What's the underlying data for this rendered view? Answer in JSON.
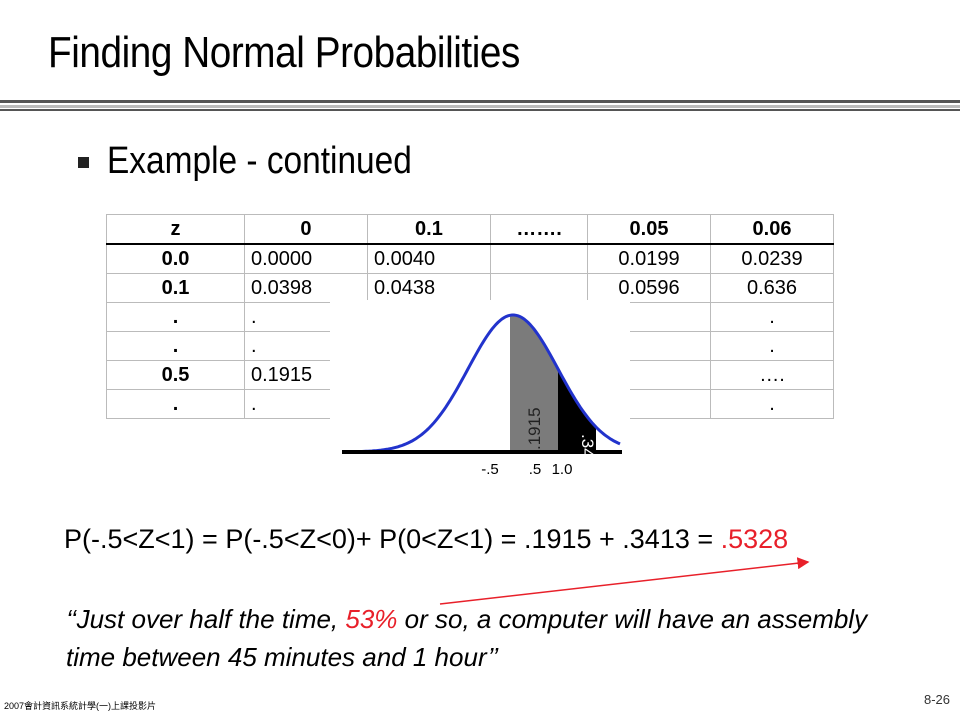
{
  "title": "Finding Normal Probabilities",
  "bullet": "Example - continued",
  "table": {
    "header": [
      "z",
      "0",
      "0.1",
      "…….",
      "0.05",
      "0.06"
    ],
    "rows": [
      [
        "0.0",
        "0.0000",
        "0.0040",
        "",
        "0.0199",
        "0.0239"
      ],
      [
        "0.1",
        "0.0398",
        "0.0438",
        "",
        "0.0596",
        "0.636"
      ],
      [
        ".",
        ".",
        "",
        "",
        "",
        "."
      ],
      [
        ".",
        ".",
        "",
        "",
        "",
        "."
      ],
      [
        "0.5",
        "0.1915",
        "",
        "",
        "",
        "…."
      ],
      [
        ".",
        ".",
        "",
        "",
        "",
        "."
      ]
    ]
  },
  "curve": {
    "left_area_label": ".1915",
    "right_area_label": ".3413",
    "tick_labels": [
      "-.5",
      ".5",
      "1.0"
    ],
    "colors": {
      "curve": "#2233cc",
      "left_fill": "#7b7b7b",
      "right_fill": "#000000",
      "axis": "#000000"
    }
  },
  "equation": {
    "text": "P(-.5<Z<1) = P(-.5<Z<0)+ P(0<Z<1) = .1915 + .3413 = ",
    "answer": ".5328"
  },
  "quote": {
    "open": "‘‘",
    "part1": "Just over half the time, ",
    "highlight": "53%",
    "part2": " or so, a computer will have an assembly time between 45 minutes and 1 hour",
    "close": "’’"
  },
  "footer": {
    "left": "2007會計資訊系統計學(一)上課投影片",
    "page": "8-26"
  },
  "accent_color": "#e8202a"
}
